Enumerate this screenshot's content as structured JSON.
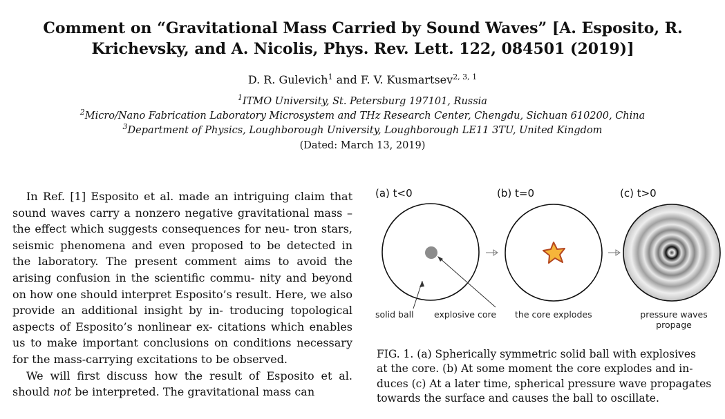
{
  "title": {
    "line1": "Comment on “Gravitational Mass Carried by Sound Waves” [A. Esposito, R.",
    "line2": "Krichevsky, and A. Nicolis, Phys. Rev. Lett. 122, 084501 (2019)]"
  },
  "authors": {
    "a1_name": "D. R. Gulevich",
    "a1_sup": "1",
    "and": "and",
    "a2_name": "F. V. Kusmartsev",
    "a2_sup": "2, 3, 1"
  },
  "affiliations": [
    {
      "sup": "1",
      "text": "ITMO University, St.  Petersburg 197101, Russia"
    },
    {
      "sup": "2",
      "text": "Micro/Nano Fabrication Laboratory Microsystem and THz Research Center, Chengdu, Sichuan 610200, China"
    },
    {
      "sup": "3",
      "text": "Department of Physics, Loughborough University, Loughborough LE11 3TU, United Kingdom"
    }
  ],
  "dated": "(Dated: March 13, 2019)",
  "body": {
    "p1_lines": [
      "In Ref. [1] Esposito et al.  made an intriguing claim",
      "that sound waves carry a nonzero negative gravitational",
      "mass – the effect which suggests consequences for neu-",
      "tron stars, seismic phenomena and even proposed to be",
      "detected in the laboratory. The present comment aims",
      "to avoid the arising confusion in the scientific commu-",
      "nity and beyond on how one should interpret Esposito’s",
      "result. Here, we also provide an additional insight by in-",
      "troducing topological aspects of Esposito’s nonlinear ex-",
      "citations which enables us to make important conclusions",
      "on conditions necessary for the mass-carrying excitations",
      "to be observed."
    ],
    "p2_line1": "We will first discuss how the result of Esposito et al.",
    "p2_line2_a": "should",
    "p2_line2_em": "not",
    "p2_line2_b": "be interpreted.  The gravitational mass can"
  },
  "figure": {
    "panels": [
      {
        "label": "(a) t<0"
      },
      {
        "label": "(b) t=0"
      },
      {
        "label": "(c) t>0"
      }
    ],
    "annotations": {
      "solid_ball": "solid ball",
      "explosive_core": "explosive core",
      "core_explodes": "the core explodes",
      "pressure_waves_1": "pressure waves",
      "pressure_waves_2": "propage"
    },
    "caption_lines": [
      "FIG. 1.   (a) Spherically symmetric solid ball with explosives",
      "at the core.  (b) At some moment the core explodes and in-",
      "duces (c) At a later time, spherical pressure wave propagates",
      "towards the surface and causes the ball to oscillate."
    ]
  }
}
